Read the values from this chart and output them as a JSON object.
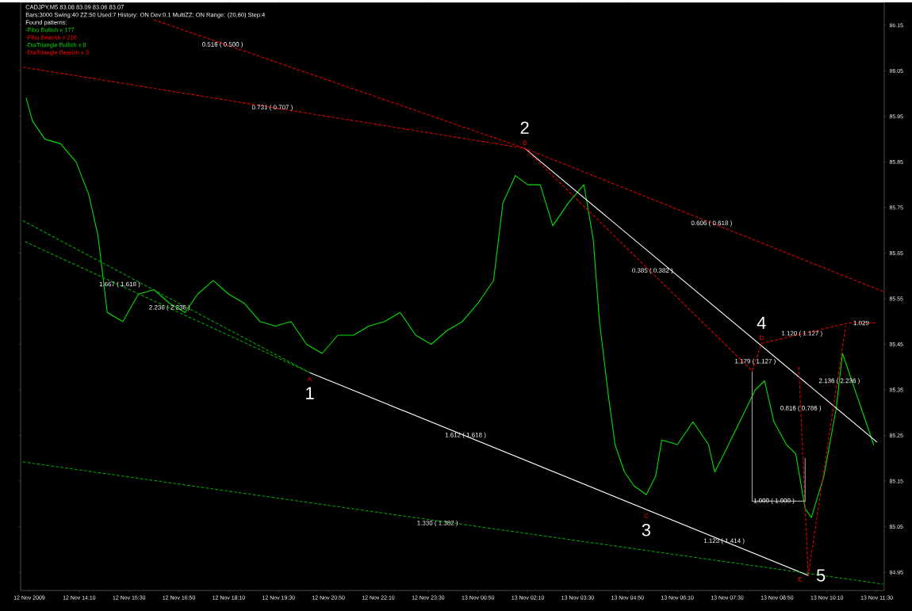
{
  "chart_data": {
    "type": "line",
    "annotations": [
      "CADJPY,M5  83.08 83.09 83.06 83.07",
      "Bars:3000  Swing:40  ZZ:50  Used:7  History: ON  Dev:0.1  MultiZZ: ON  Range: (20,60)  Step:4",
      "Found patterns:",
      "-Fibo Bullish x 177",
      "-Fibo Bearish x 216",
      "-DiaTriangle Bullish x 8",
      "-DiaTriangle Bearish x 3",
      {
        "text": "1",
        "x": "2009-11-12T20:20",
        "y": 85.388
      },
      {
        "text": "2",
        "x": "2009-11-13T02:05",
        "y": 85.88
      },
      {
        "text": "3",
        "x": "2009-11-13T05:20",
        "y": 85.088
      },
      {
        "text": "4",
        "x": "2009-11-13T08:25",
        "y": 85.452
      },
      {
        "text": "5",
        "x": "2009-11-13T09:40",
        "y": 84.943
      },
      {
        "text": "A",
        "x": "2009-11-12T20:20",
        "y": 85.388
      },
      {
        "text": "B",
        "x": "2009-11-13T02:05",
        "y": 85.88
      },
      {
        "text": "C",
        "x": "2009-11-13T05:20",
        "y": 85.088
      },
      {
        "text": "D",
        "x": "2009-11-13T08:25",
        "y": 85.452
      },
      {
        "text": "E",
        "x": "2009-11-13T09:40",
        "y": 84.943
      },
      {
        "text": "0.516 ( 0.500 )",
        "x": "2009-11-12T18:00",
        "y": 86.107
      },
      {
        "text": "0.731 ( 0.707 )",
        "x": "2009-11-12T19:20",
        "y": 85.969
      },
      {
        "text": "0.606 ( 0.618 )",
        "x": "2009-11-13T07:05",
        "y": 85.715
      },
      {
        "text": "0.385 ( 0.382 )",
        "x": "2009-11-13T05:30",
        "y": 85.611
      },
      {
        "text": "1.667 ( 1.618 )",
        "x": "2009-11-12T15:15",
        "y": 85.581
      },
      {
        "text": "2.236 ( 2.236 )",
        "x": "2009-11-12T16:35",
        "y": 85.53
      },
      {
        "text": "1.612 ( 1.618 )",
        "x": "2009-11-13T00:30",
        "y": 85.25
      },
      {
        "text": "1.330 ( 1.382 )",
        "x": "2009-11-12T23:45",
        "y": 85.057
      },
      {
        "text": "1.123 ( 1.414 )",
        "x": "2009-11-13T07:25",
        "y": 85.018
      },
      {
        "text": "1.000 ( 1.000 )",
        "x": "2009-11-13T08:45",
        "y": 85.106
      },
      {
        "text": "1.120 ( 1.127 )",
        "x": "2009-11-13T09:30",
        "y": 85.473
      },
      {
        "text": "1.029",
        "x": "2009-11-13T11:05",
        "y": 85.497
      },
      {
        "text": "1.179 ( 1.127 )",
        "x": "2009-11-13T08:15",
        "y": 85.412
      },
      {
        "text": "0.816 ( 0.786 )",
        "x": "2009-11-13T09:28",
        "y": 85.309
      },
      {
        "text": "2.136 ( 2.236 )",
        "x": "2009-11-13T10:30",
        "y": 85.369
      }
    ],
    "xlim": [
      "2009-11-12T12:36",
      "2009-11-13T11:42"
    ],
    "ylim": [
      84.91,
      86.2
    ],
    "xticks": [
      {
        "value": "2009-11-12T12:50",
        "label": "12 Nov 2009"
      },
      {
        "value": "2009-11-12T14:10",
        "label": "12 Nov 14:10"
      },
      {
        "value": "2009-11-12T15:30",
        "label": "12 Nov 15:30"
      },
      {
        "value": "2009-11-12T16:50",
        "label": "12 Nov 16:50"
      },
      {
        "value": "2009-11-12T18:10",
        "label": "12 Nov 18:10"
      },
      {
        "value": "2009-11-12T19:30",
        "label": "12 Nov 19:30"
      },
      {
        "value": "2009-11-12T20:50",
        "label": "12 Nov 20:50"
      },
      {
        "value": "2009-11-12T22:10",
        "label": "12 Nov 22:10"
      },
      {
        "value": "2009-11-12T23:30",
        "label": "12 Nov 23:30"
      },
      {
        "value": "2009-11-13T00:50",
        "label": "13 Nov 00:50"
      },
      {
        "value": "2009-11-13T02:10",
        "label": "13 Nov 02:10"
      },
      {
        "value": "2009-11-13T03:30",
        "label": "13 Nov 03:30"
      },
      {
        "value": "2009-11-13T04:50",
        "label": "13 Nov 04:50"
      },
      {
        "value": "2009-11-13T06:10",
        "label": "13 Nov 06:10"
      },
      {
        "value": "2009-11-13T07:30",
        "label": "13 Nov 07:30"
      },
      {
        "value": "2009-11-13T08:50",
        "label": "13 Nov 08:50"
      },
      {
        "value": "2009-11-13T10:10",
        "label": "13 Nov 10:10"
      },
      {
        "value": "2009-11-13T11:30",
        "label": "13 Nov 11:30"
      }
    ],
    "yticks": [
      {
        "value": 84.95,
        "label": "84.95"
      },
      {
        "value": 85.05,
        "label": "85.05"
      },
      {
        "value": 85.15,
        "label": "85.15"
      },
      {
        "value": 85.25,
        "label": "85.25"
      },
      {
        "value": 85.35,
        "label": "85.35"
      },
      {
        "value": 85.45,
        "label": "85.45"
      },
      {
        "value": 85.55,
        "label": "85.55"
      },
      {
        "value": 85.65,
        "label": "85.65"
      },
      {
        "value": 85.75,
        "label": "85.75"
      },
      {
        "value": 85.85,
        "label": "85.85"
      },
      {
        "value": 85.95,
        "label": "85.95"
      },
      {
        "value": 86.05,
        "label": "86.05"
      },
      {
        "value": 86.15,
        "label": "86.15"
      }
    ],
    "series": [
      {
        "color": "#00e000",
        "x": [
          "2009-11-12T12:45",
          "2009-11-12T12:55",
          "2009-11-12T13:15",
          "2009-11-12T13:40",
          "2009-11-12T14:05",
          "2009-11-12T14:25",
          "2009-11-12T14:40",
          "2009-11-12T14:55",
          "2009-11-12T15:20",
          "2009-11-12T15:45",
          "2009-11-12T16:10",
          "2009-11-12T16:35",
          "2009-11-12T17:00",
          "2009-11-12T17:20",
          "2009-11-12T17:45",
          "2009-11-12T18:10",
          "2009-11-12T18:35",
          "2009-11-12T19:00",
          "2009-11-12T19:25",
          "2009-11-12T19:50",
          "2009-11-12T20:15",
          "2009-11-12T20:40",
          "2009-11-12T21:05",
          "2009-11-12T21:30",
          "2009-11-12T21:55",
          "2009-11-12T22:20",
          "2009-11-12T22:45",
          "2009-11-12T23:10",
          "2009-11-12T23:35",
          "2009-11-13T00:00",
          "2009-11-13T00:25",
          "2009-11-13T00:50",
          "2009-11-13T01:15",
          "2009-11-13T01:30",
          "2009-11-13T01:50",
          "2009-11-13T02:10",
          "2009-11-13T02:30",
          "2009-11-13T02:50",
          "2009-11-13T03:15",
          "2009-11-13T03:40",
          "2009-11-13T03:55",
          "2009-11-13T04:05",
          "2009-11-13T04:20",
          "2009-11-13T04:30",
          "2009-11-13T04:45",
          "2009-11-13T05:00",
          "2009-11-13T05:20",
          "2009-11-13T05:35",
          "2009-11-13T05:45",
          "2009-11-13T06:10",
          "2009-11-13T06:35",
          "2009-11-13T07:00",
          "2009-11-13T07:10",
          "2009-11-13T07:25",
          "2009-11-13T07:50",
          "2009-11-13T08:15",
          "2009-11-13T08:30",
          "2009-11-13T08:45",
          "2009-11-13T09:05",
          "2009-11-13T09:20",
          "2009-11-13T09:35",
          "2009-11-13T09:45",
          "2009-11-13T10:05",
          "2009-11-13T10:25",
          "2009-11-13T10:35",
          "2009-11-13T10:50",
          "2009-11-13T11:05",
          "2009-11-13T11:25"
        ],
        "values": [
          85.99,
          85.94,
          85.9,
          85.89,
          85.85,
          85.78,
          85.69,
          85.52,
          85.5,
          85.56,
          85.57,
          85.54,
          85.52,
          85.56,
          85.59,
          85.56,
          85.54,
          85.5,
          85.49,
          85.5,
          85.45,
          85.43,
          85.47,
          85.47,
          85.49,
          85.5,
          85.52,
          85.47,
          85.45,
          85.48,
          85.5,
          85.54,
          85.59,
          85.76,
          85.82,
          85.8,
          85.8,
          85.71,
          85.76,
          85.8,
          85.68,
          85.5,
          85.33,
          85.23,
          85.17,
          85.14,
          85.12,
          85.16,
          85.24,
          85.23,
          85.28,
          85.23,
          85.17,
          85.21,
          85.28,
          85.35,
          85.37,
          85.28,
          85.23,
          85.21,
          85.09,
          85.07,
          85.16,
          85.31,
          85.43,
          85.37,
          85.31,
          85.23
        ]
      },
      {
        "color": "#ffffff",
        "x": [
          "2009-11-12T20:20",
          "2009-11-13T09:40"
        ],
        "values": [
          85.388,
          84.943
        ]
      },
      {
        "color": "#ffffff",
        "x": [
          "2009-11-13T02:05",
          "2009-11-13T11:30"
        ],
        "values": [
          85.88,
          85.236
        ]
      },
      {
        "color": "#e00000",
        "line_style": "dashed",
        "x": [
          "2009-11-12T12:40",
          "2009-11-13T02:05",
          "2009-11-13T11:40"
        ],
        "values": [
          86.058,
          85.88,
          85.566
        ]
      },
      {
        "color": "#e00000",
        "line_style": "dashed",
        "x": [
          "2009-11-12T16:10",
          "2009-11-13T02:05",
          "2009-11-13T08:10",
          "2009-11-13T08:25",
          "2009-11-13T10:45",
          "2009-11-13T11:30"
        ],
        "values": [
          86.162,
          85.88,
          85.392,
          85.452,
          85.497,
          85.497
        ]
      },
      {
        "color": "#e00000",
        "line_style": "dashed",
        "x": [
          "2009-11-13T09:25",
          "2009-11-13T09:40",
          "2009-11-13T10:40"
        ],
        "values": [
          85.4,
          84.943,
          85.49
        ]
      },
      {
        "color": "#00a000",
        "line_style": "dashed",
        "x": [
          "2009-11-12T12:40",
          "2009-11-12T20:20",
          "2009-11-12T12:40"
        ],
        "values": [
          85.721,
          85.388,
          85.677
        ]
      },
      {
        "color": "#00a000",
        "line_style": "dashed",
        "x": [
          "2009-11-12T12:40",
          "2009-11-13T11:40"
        ],
        "values": [
          85.192,
          84.924
        ]
      },
      {
        "color": "#a0a0a0",
        "x": [
          "2009-11-13T08:10",
          "2009-11-13T08:10",
          "2009-11-13T09:35",
          "2009-11-13T09:35"
        ],
        "values": [
          85.39,
          85.106,
          85.106,
          85.2
        ]
      }
    ]
  }
}
